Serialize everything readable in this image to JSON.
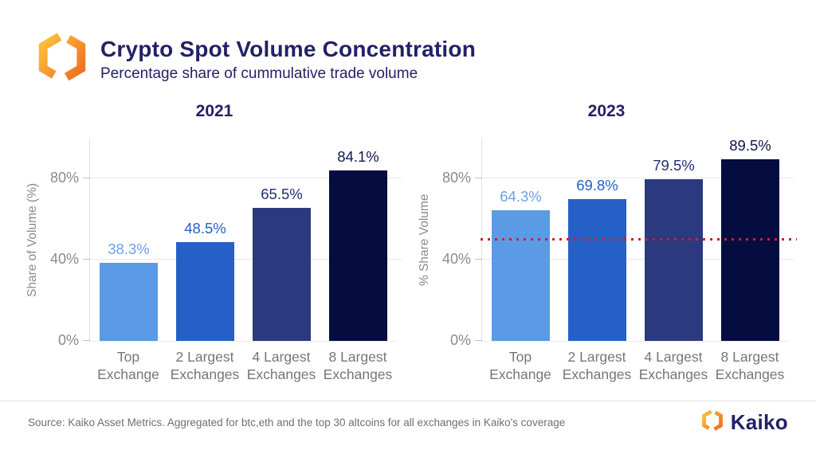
{
  "header": {
    "title": "Crypto Spot Volume Concentration",
    "subtitle": "Percentage share of cummulative trade volume"
  },
  "chart_data": [
    {
      "type": "bar",
      "title": "2021",
      "ylabel": "Share of Volume (%)",
      "categories": [
        "Top Exchange",
        "2 Largest Exchanges",
        "4 Largest Exchanges",
        "8 Largest Exchanges"
      ],
      "categories_lines": [
        [
          "Top",
          "Exchange"
        ],
        [
          "2 Largest",
          "Exchanges"
        ],
        [
          "4 Largest",
          "Exchanges"
        ],
        [
          "8 Largest",
          "Exchanges"
        ]
      ],
      "values": [
        38.3,
        48.5,
        65.5,
        84.1
      ],
      "value_labels": [
        "38.3%",
        "48.5%",
        "65.5%",
        "84.1%"
      ],
      "bar_colors": [
        "#5b9ae4",
        "#2560c6",
        "#2b3a7e",
        "#050c3f"
      ],
      "label_colors": [
        "#6ba1e8",
        "#2560c6",
        "#232e70",
        "#10164e"
      ],
      "yticks": [
        {
          "label": "0%",
          "value": 0
        },
        {
          "label": "40%",
          "value": 40
        },
        {
          "label": "80%",
          "value": 80
        }
      ],
      "ylim": [
        0,
        100
      ],
      "grid": true,
      "legend": "none"
    },
    {
      "type": "bar",
      "title": "2023",
      "ylabel": "% Share Volume",
      "categories": [
        "Top Exchange",
        "2 Largest Exchanges",
        "4 Largest Exchanges",
        "8 Largest Exchanges"
      ],
      "categories_lines": [
        [
          "Top",
          "Exchange"
        ],
        [
          "2 Largest",
          "Exchanges"
        ],
        [
          "4 Largest",
          "Exchanges"
        ],
        [
          "8 Largest",
          "Exchanges"
        ]
      ],
      "values": [
        64.3,
        69.8,
        79.5,
        89.5
      ],
      "value_labels": [
        "64.3%",
        "69.8%",
        "79.5%",
        "89.5%"
      ],
      "bar_colors": [
        "#5b9ae4",
        "#2560c6",
        "#2b3a7e",
        "#050c3f"
      ],
      "label_colors": [
        "#6ba1e8",
        "#2560c6",
        "#232e70",
        "#10164e"
      ],
      "yticks": [
        {
          "label": "0%",
          "value": 0
        },
        {
          "label": "40%",
          "value": 40
        },
        {
          "label": "80%",
          "value": 80
        }
      ],
      "ylim": [
        0,
        100
      ],
      "grid": true,
      "legend": "none",
      "reference_line": {
        "value": 50,
        "style": "dotted",
        "color": "#c42525"
      }
    }
  ],
  "footer": {
    "source": "Source: Kaiko Asset Metrics. Aggregated for btc,eth and the top 30 altcoins for all exchanges in Kaiko's coverage",
    "brand": "Kaiko"
  },
  "colors": {
    "title_navy": "#232168",
    "axis_gray": "#8a8a8a",
    "xlabel_gray": "#767676",
    "gridline": "#e9e9e9",
    "red_dotted": "#c42525",
    "logo_orange_light": "#ffc53d",
    "logo_orange_dark": "#ee6a1f"
  },
  "icons": {
    "header_logo": "kaiko-hexagon-logo",
    "footer_logo": "kaiko-hexagon-logo"
  }
}
